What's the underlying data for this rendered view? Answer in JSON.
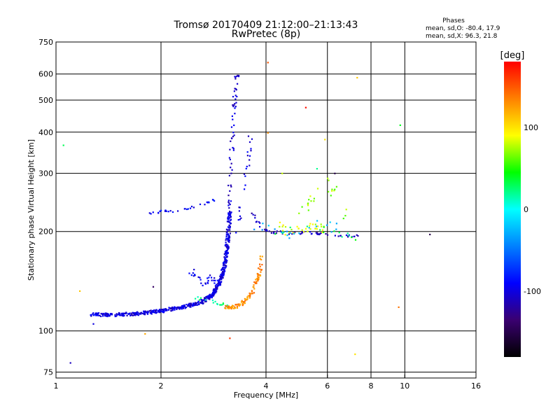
{
  "chart_data": {
    "type": "scatter",
    "title": "Tromsø 20170409 21:12:00–21:13:43",
    "subtitle": "RwPretec (8p)",
    "xlabel": "Frequency [MHz]",
    "ylabel": "Stationary phase Virtual Height [km]",
    "x_scale": "log",
    "y_scale": "log",
    "xlim": [
      1,
      16
    ],
    "ylim": [
      72,
      750
    ],
    "x_ticks": [
      1,
      2,
      4,
      6,
      8,
      10,
      16
    ],
    "y_ticks": [
      75,
      100,
      200,
      300,
      400,
      500,
      600,
      750
    ],
    "grid": true,
    "phases_title": "Phases",
    "phases_lines": [
      "mean, sd,O: -80.4, 17.9",
      "mean, sd,X:  96.3, 21.8"
    ],
    "colorbar": {
      "label": "[deg]",
      "range": [
        -180,
        180
      ],
      "ticks": [
        100,
        0,
        -100
      ],
      "colors": [
        "#000000",
        "#3a0070",
        "#0000ff",
        "#0080ff",
        "#00ffff",
        "#00ff00",
        "#ffff00",
        "#ff8000",
        "#ff0000"
      ]
    },
    "clusters": [
      {
        "name": "o-low",
        "phase": -100,
        "n": 60,
        "pts": [
          [
            1.25,
            112
          ],
          [
            1.5,
            112
          ],
          [
            1.75,
            113
          ],
          [
            2.0,
            115
          ],
          [
            2.3,
            118
          ],
          [
            2.6,
            122
          ],
          [
            2.8,
            128
          ],
          [
            2.95,
            140
          ],
          [
            3.05,
            160
          ],
          [
            3.1,
            185
          ],
          [
            3.15,
            230
          ]
        ],
        "jx": 0.012,
        "jy": 0.012
      },
      {
        "name": "o-spread",
        "phase": -105,
        "n": 16,
        "pts": [
          [
            3.1,
            180
          ],
          [
            3.15,
            260
          ],
          [
            3.2,
            380
          ],
          [
            3.25,
            500
          ],
          [
            3.3,
            600
          ]
        ],
        "jx": 0.015,
        "jy": 0.03
      },
      {
        "name": "o-second",
        "phase": -100,
        "n": 8,
        "pts": [
          [
            3.3,
            200
          ],
          [
            3.45,
            260
          ],
          [
            3.55,
            330
          ],
          [
            3.6,
            380
          ]
        ],
        "jx": 0.015,
        "jy": 0.03
      },
      {
        "name": "o-branch",
        "phase": -95,
        "n": 10,
        "pts": [
          [
            2.4,
            150
          ],
          [
            2.6,
            140
          ],
          [
            2.8,
            145
          ],
          [
            3.0,
            140
          ]
        ],
        "jx": 0.02,
        "jy": 0.04
      },
      {
        "name": "e-layer",
        "phase": -90,
        "n": 8,
        "pts": [
          [
            1.85,
            228
          ],
          [
            2.0,
            230
          ],
          [
            2.3,
            232
          ],
          [
            2.6,
            240
          ],
          [
            2.9,
            250
          ]
        ],
        "jx": 0.01,
        "jy": 0.01
      },
      {
        "name": "f-trace",
        "phase": -110,
        "n": 12,
        "pts": [
          [
            3.6,
            230
          ],
          [
            4.0,
            200
          ],
          [
            4.6,
            198
          ],
          [
            5.5,
            198
          ],
          [
            6.5,
            195
          ],
          [
            7.5,
            193
          ]
        ],
        "jx": 0.012,
        "jy": 0.01
      },
      {
        "name": "x-low",
        "phase": 20,
        "n": 6,
        "pts": [
          [
            2.5,
            125
          ],
          [
            2.8,
            123
          ],
          [
            3.0,
            120
          ],
          [
            3.1,
            118
          ]
        ],
        "jx": 0.015,
        "jy": 0.015
      },
      {
        "name": "x-orange",
        "phase": 130,
        "n": 20,
        "pts": [
          [
            3.05,
            118
          ],
          [
            3.25,
            118
          ],
          [
            3.45,
            122
          ],
          [
            3.65,
            130
          ],
          [
            3.8,
            145
          ],
          [
            3.9,
            170
          ]
        ],
        "jx": 0.012,
        "jy": 0.012
      },
      {
        "name": "x-yellow-a",
        "phase": 85,
        "n": 8,
        "pts": [
          [
            4.3,
            210
          ],
          [
            4.7,
            200
          ],
          [
            5.2,
            205
          ],
          [
            5.6,
            210
          ],
          [
            6.0,
            200
          ]
        ],
        "jx": 0.03,
        "jy": 0.03
      },
      {
        "name": "x-yellow-b",
        "phase": 70,
        "n": 6,
        "pts": [
          [
            5.0,
            230
          ],
          [
            5.4,
            245
          ],
          [
            5.8,
            300
          ],
          [
            6.3,
            260
          ],
          [
            6.8,
            210
          ]
        ],
        "jx": 0.03,
        "jy": 0.04
      },
      {
        "name": "x-cyan",
        "phase": -30,
        "n": 5,
        "pts": [
          [
            3.7,
            210
          ],
          [
            4.2,
            200
          ],
          [
            4.8,
            195
          ],
          [
            5.8,
            215
          ],
          [
            6.5,
            200
          ]
        ],
        "jx": 0.03,
        "jy": 0.03
      },
      {
        "name": "x-green",
        "phase": 30,
        "n": 5,
        "pts": [
          [
            4.2,
            200
          ],
          [
            5.6,
            205
          ],
          [
            6.6,
            195
          ],
          [
            7.2,
            190
          ]
        ],
        "jx": 0.03,
        "jy": 0.02
      }
    ],
    "outliers": [
      [
        1.05,
        365,
        30
      ],
      [
        1.1,
        80,
        -110
      ],
      [
        1.17,
        132,
        110
      ],
      [
        1.28,
        105,
        -100
      ],
      [
        1.8,
        98,
        120
      ],
      [
        1.9,
        136,
        -140
      ],
      [
        3.15,
        95,
        160
      ],
      [
        4.05,
        650,
        150
      ],
      [
        4.05,
        398,
        130
      ],
      [
        4.45,
        300,
        80
      ],
      [
        5.2,
        475,
        175
      ],
      [
        5.6,
        310,
        20
      ],
      [
        6.3,
        300,
        -150
      ],
      [
        7.3,
        585,
        110
      ],
      [
        7.2,
        85,
        100
      ],
      [
        9.7,
        420,
        40
      ],
      [
        9.6,
        118,
        140
      ],
      [
        11.8,
        196,
        -150
      ],
      [
        5.9,
        380,
        100
      ]
    ]
  }
}
